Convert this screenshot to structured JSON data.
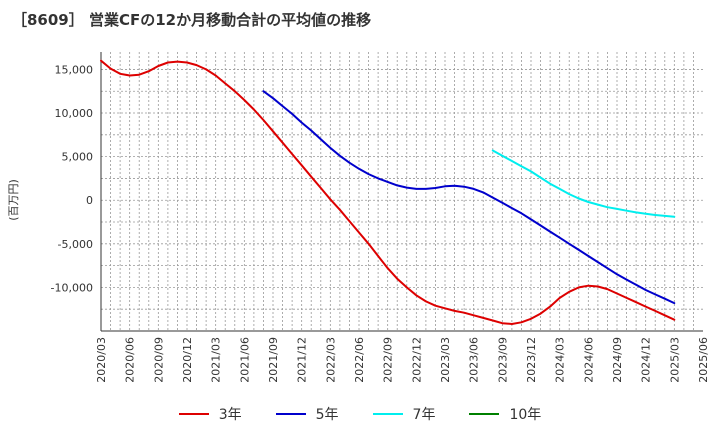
{
  "chart_data": {
    "type": "line",
    "title": "［8609］ 営業CFの12か月移動合計の平均値の推移",
    "ylabel": "(百万円)",
    "ylim": [
      -15000,
      17000
    ],
    "yticks": [
      15000,
      10000,
      5000,
      0,
      -5000,
      -10000
    ],
    "ytick_labels": [
      "15,000",
      "10,000",
      "5,000",
      "0",
      "-5,000",
      "-10,000"
    ],
    "xlim": [
      "2020-03",
      "2025-06"
    ],
    "xtick_labels": [
      "2020/03",
      "2020/06",
      "2020/09",
      "2020/12",
      "2021/03",
      "2021/06",
      "2021/09",
      "2021/12",
      "2022/03",
      "2022/06",
      "2022/09",
      "2022/12",
      "2023/03",
      "2023/06",
      "2023/09",
      "2023/12",
      "2024/03",
      "2024/06",
      "2024/09",
      "2024/12",
      "2025/03",
      "2025/06"
    ],
    "grid": true,
    "legend_position": "bottom",
    "series": [
      {
        "name": "3年",
        "color": "#dd0000",
        "x": [
          "2020-03",
          "2020-04",
          "2020-05",
          "2020-06",
          "2020-07",
          "2020-08",
          "2020-09",
          "2020-10",
          "2020-11",
          "2020-12",
          "2021-01",
          "2021-02",
          "2021-03",
          "2021-04",
          "2021-05",
          "2021-06",
          "2021-07",
          "2021-08",
          "2021-09",
          "2021-10",
          "2021-11",
          "2021-12",
          "2022-01",
          "2022-02",
          "2022-03",
          "2022-04",
          "2022-05",
          "2022-06",
          "2022-07",
          "2022-08",
          "2022-09",
          "2022-10",
          "2022-11",
          "2022-12",
          "2023-01",
          "2023-02",
          "2023-03",
          "2023-04",
          "2023-05",
          "2023-06",
          "2023-07",
          "2023-08",
          "2023-09",
          "2023-10",
          "2023-11",
          "2023-12",
          "2024-01",
          "2024-02",
          "2024-03",
          "2024-04",
          "2024-05",
          "2024-06",
          "2024-07",
          "2024-08",
          "2024-09",
          "2024-10",
          "2024-11",
          "2024-12",
          "2025-01",
          "2025-02",
          "2025-03"
        ],
        "values": [
          16000,
          15100,
          14500,
          14300,
          14400,
          14800,
          15400,
          15800,
          15900,
          15800,
          15500,
          15000,
          14300,
          13400,
          12500,
          11500,
          10400,
          9200,
          7900,
          6600,
          5300,
          4000,
          2700,
          1400,
          100,
          -1100,
          -2400,
          -3700,
          -5000,
          -6400,
          -7800,
          -9000,
          -10000,
          -10900,
          -11600,
          -12100,
          -12400,
          -12700,
          -12900,
          -13200,
          -13500,
          -13800,
          -14100,
          -14200,
          -14000,
          -13600,
          -13000,
          -12200,
          -11200,
          -10500,
          -10000,
          -9800,
          -9900,
          -10200,
          -10700,
          -11200,
          -11700,
          -12200,
          -12700,
          -13200,
          -13700
        ]
      },
      {
        "name": "5年",
        "color": "#0000cc",
        "x": [
          "2021-08",
          "2021-09",
          "2021-10",
          "2021-11",
          "2021-12",
          "2022-01",
          "2022-02",
          "2022-03",
          "2022-04",
          "2022-05",
          "2022-06",
          "2022-07",
          "2022-08",
          "2022-09",
          "2022-10",
          "2022-11",
          "2022-12",
          "2023-01",
          "2023-02",
          "2023-03",
          "2023-04",
          "2023-05",
          "2023-06",
          "2023-07",
          "2023-08",
          "2023-09",
          "2023-10",
          "2023-11",
          "2023-12",
          "2024-01",
          "2024-02",
          "2024-03",
          "2024-04",
          "2024-05",
          "2024-06",
          "2024-07",
          "2024-08",
          "2024-09",
          "2024-10",
          "2024-11",
          "2024-12",
          "2025-01",
          "2025-02",
          "2025-03"
        ],
        "values": [
          12500,
          11700,
          10800,
          9900,
          8900,
          8000,
          7000,
          6000,
          5100,
          4300,
          3600,
          3000,
          2500,
          2100,
          1700,
          1450,
          1300,
          1300,
          1400,
          1600,
          1650,
          1550,
          1300,
          900,
          300,
          -300,
          -900,
          -1500,
          -2200,
          -2900,
          -3600,
          -4300,
          -5000,
          -5700,
          -6400,
          -7100,
          -7800,
          -8500,
          -9100,
          -9700,
          -10300,
          -10800,
          -11300,
          -11800
        ]
      },
      {
        "name": "7年",
        "color": "#00eeee",
        "x": [
          "2023-08",
          "2023-09",
          "2023-10",
          "2023-11",
          "2023-12",
          "2024-01",
          "2024-02",
          "2024-03",
          "2024-04",
          "2024-05",
          "2024-06",
          "2024-07",
          "2024-08",
          "2024-09",
          "2024-10",
          "2024-11",
          "2024-12",
          "2025-01",
          "2025-02",
          "2025-03"
        ],
        "values": [
          5700,
          5100,
          4500,
          3900,
          3300,
          2600,
          1900,
          1300,
          700,
          200,
          -200,
          -500,
          -800,
          -1000,
          -1200,
          -1400,
          -1550,
          -1700,
          -1800,
          -1900
        ]
      },
      {
        "name": "10年",
        "color": "#008000",
        "x": [],
        "values": []
      }
    ]
  }
}
